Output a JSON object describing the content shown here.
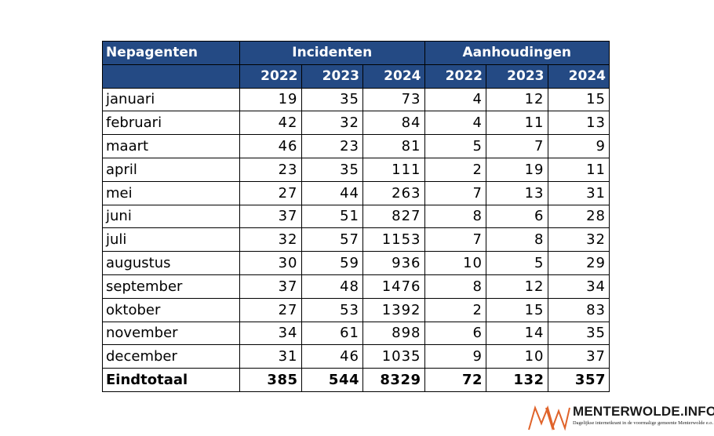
{
  "table": {
    "corner_label": "Nepagenten",
    "groups": [
      "Incidenten",
      "Aanhoudingen"
    ],
    "years": [
      "2022",
      "2023",
      "2024",
      "2022",
      "2023",
      "2024"
    ],
    "rows": [
      {
        "label": "januari",
        "values": [
          "19",
          "35",
          "73",
          "4",
          "12",
          "15"
        ]
      },
      {
        "label": "februari",
        "values": [
          "42",
          "32",
          "84",
          "4",
          "11",
          "13"
        ]
      },
      {
        "label": "maart",
        "values": [
          "46",
          "23",
          "81",
          "5",
          "7",
          "9"
        ]
      },
      {
        "label": "april",
        "values": [
          "23",
          "35",
          "111",
          "2",
          "19",
          "11"
        ]
      },
      {
        "label": "mei",
        "values": [
          "27",
          "44",
          "263",
          "7",
          "13",
          "31"
        ]
      },
      {
        "label": "juni",
        "values": [
          "37",
          "51",
          "827",
          "8",
          "6",
          "28"
        ]
      },
      {
        "label": "juli",
        "values": [
          "32",
          "57",
          "1153",
          "7",
          "8",
          "32"
        ]
      },
      {
        "label": "augustus",
        "values": [
          "30",
          "59",
          "936",
          "10",
          "5",
          "29"
        ]
      },
      {
        "label": "september",
        "values": [
          "37",
          "48",
          "1476",
          "8",
          "12",
          "34"
        ]
      },
      {
        "label": "oktober",
        "values": [
          "27",
          "53",
          "1392",
          "2",
          "15",
          "83"
        ]
      },
      {
        "label": "november",
        "values": [
          "34",
          "61",
          "898",
          "6",
          "14",
          "35"
        ]
      },
      {
        "label": "december",
        "values": [
          "31",
          "46",
          "1035",
          "9",
          "10",
          "37"
        ]
      }
    ],
    "total": {
      "label": "Eindtotaal",
      "values": [
        "385",
        "544",
        "8329",
        "72",
        "132",
        "357"
      ]
    }
  },
  "logo": {
    "mark": "MW",
    "name": "MENTERWOLDE.INFO",
    "tagline": "Dagelijkse internetkrant in de voormalige gemeente Menterwolde e.o.",
    "colors": {
      "mark": "#e0632a",
      "text": "#1a1a1a"
    }
  },
  "colors": {
    "header_bg": "#244a84",
    "header_text": "#ffffff",
    "border": "#000000"
  }
}
